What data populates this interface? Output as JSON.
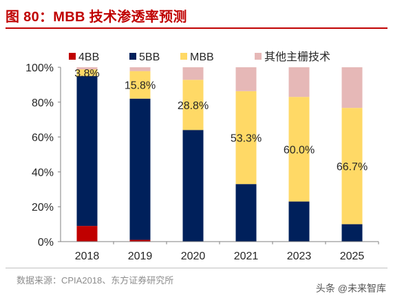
{
  "figure": {
    "title": "图 80：MBB 技术渗透率预测",
    "source": "数据来源：CPIA2018、东方证券研究所",
    "watermark": "头条 @未来智库"
  },
  "colors": {
    "title_red": "#c00000",
    "4BB": "#c00000",
    "5BB": "#00205b",
    "MBB": "#ffd966",
    "其他主栅技术": "#e6b8b7"
  },
  "chart_data": {
    "type": "bar",
    "stacked": true,
    "categories": [
      "2018",
      "2019",
      "2020",
      "2021",
      "2023",
      "2025"
    ],
    "series": [
      {
        "name": "4BB",
        "color": "#c00000",
        "values": [
          9,
          1,
          0,
          0,
          0,
          0
        ]
      },
      {
        "name": "5BB",
        "color": "#00205b",
        "values": [
          86,
          81,
          64,
          33,
          23,
          10
        ]
      },
      {
        "name": "MBB",
        "color": "#ffd966",
        "values": [
          3.8,
          15.8,
          28.8,
          53.3,
          60.0,
          66.7
        ]
      },
      {
        "name": "其他主栅技术",
        "color": "#e6b8b7",
        "values": [
          1.2,
          2.2,
          7.2,
          13.7,
          17.0,
          23.3
        ]
      }
    ],
    "data_labels": [
      "3.8%",
      "15.8%",
      "28.8%",
      "53.3%",
      "60.0%",
      "66.7%"
    ],
    "ylim": [
      0,
      100
    ],
    "yticks": [
      "0%",
      "20%",
      "40%",
      "60%",
      "80%",
      "100%"
    ],
    "legend_position": "top",
    "grid": false
  }
}
